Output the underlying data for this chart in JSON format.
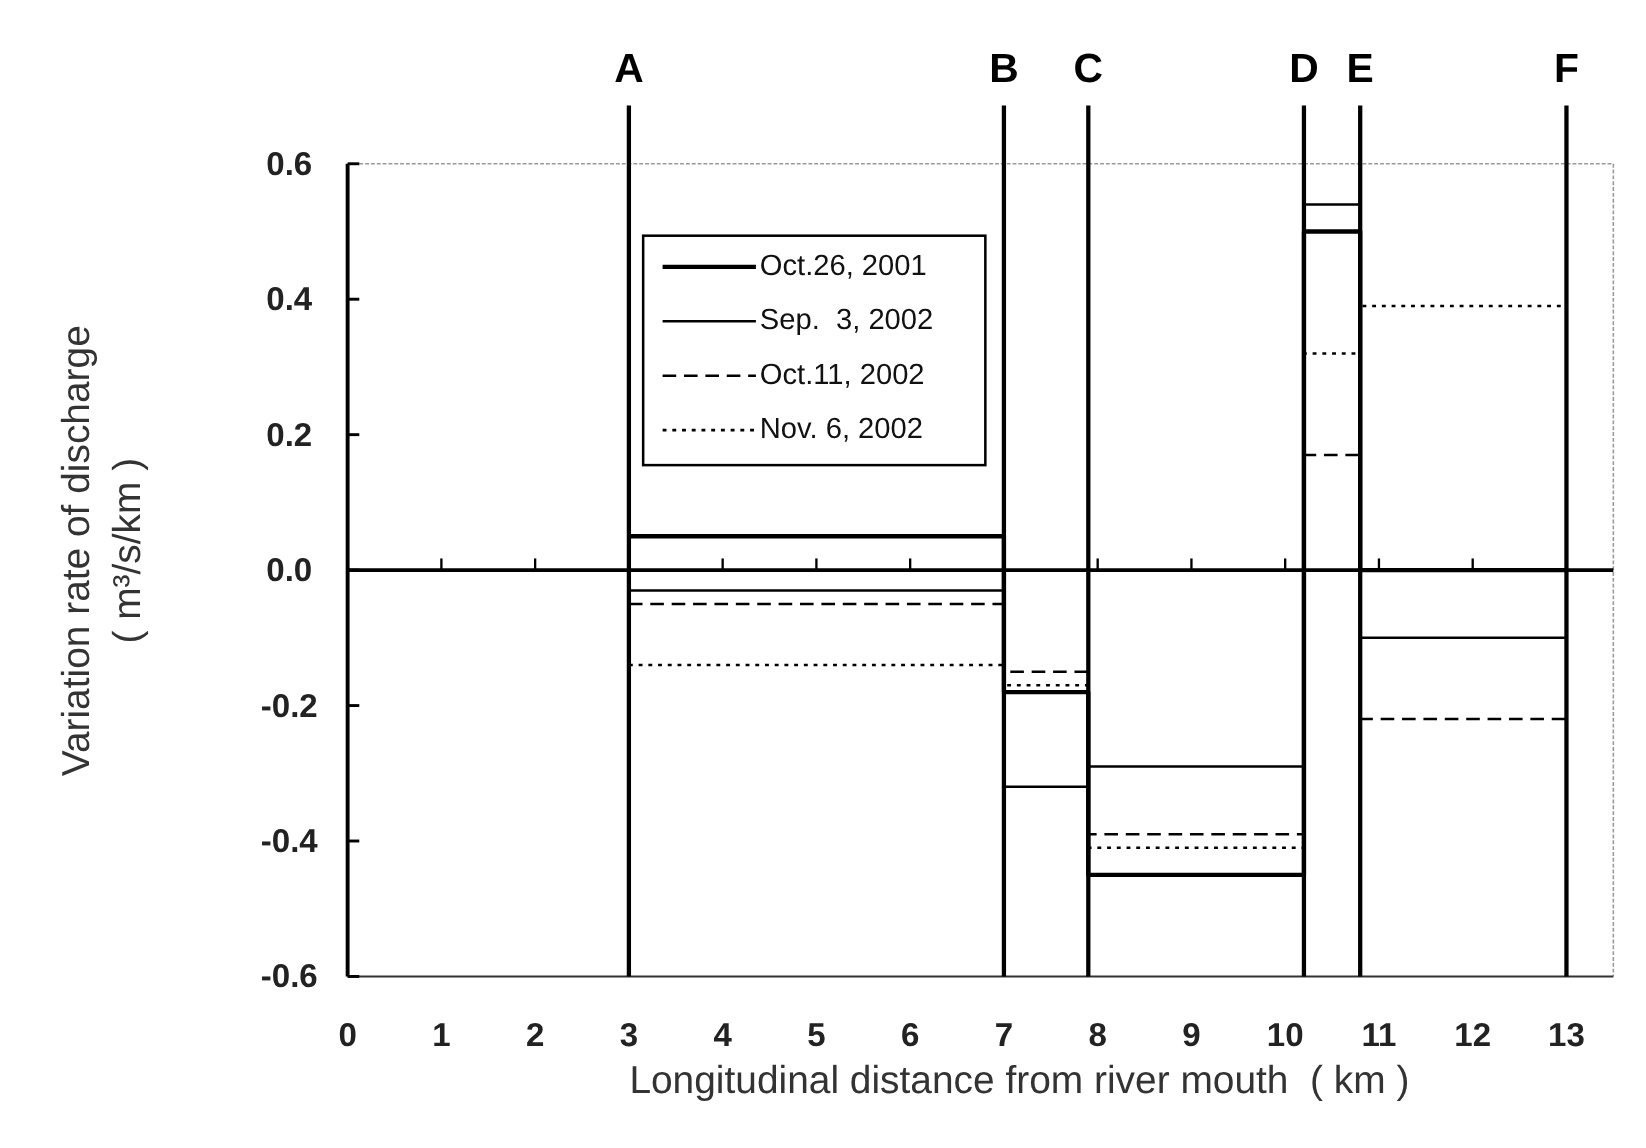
{
  "chart_data": {
    "type": "step",
    "xlabel": "Longitudinal distance from river mouth  ( km )",
    "ylabel": "Variation rate of discharge\n( m³/s/km )",
    "xlim": [
      0,
      13.5
    ],
    "xticks": [
      0,
      1,
      2,
      3,
      4,
      5,
      6,
      7,
      8,
      9,
      10,
      11,
      12,
      13
    ],
    "ylim": [
      -0.6,
      0.6
    ],
    "yticks": [
      {
        "value": 0.6,
        "label": "0.6"
      },
      {
        "value": 0.4,
        "label": "0.4"
      },
      {
        "value": 0.2,
        "label": "0.2"
      },
      {
        "value": 0,
        "label": "0.0"
      },
      {
        "value": -0.2,
        "label": "-0.2"
      },
      {
        "value": -0.4,
        "label": "-0.4"
      },
      {
        "value": -0.6,
        "label": "-0.6"
      }
    ],
    "x": [
      3,
      7,
      7.9,
      10.2,
      10.8,
      13
    ],
    "series": [
      {
        "name": "Oct.26, 2001",
        "color": "#000000",
        "line_style": "solid",
        "values": [
          0.05,
          -0.18,
          -0.45,
          0.5,
          0.0,
          0.0
        ]
      },
      {
        "name": "Sep.  3, 2002",
        "color": "#000000",
        "line_style": "solid",
        "values": [
          -0.03,
          -0.32,
          -0.29,
          0.54,
          -0.1,
          -0.1
        ]
      },
      {
        "name": "Oct.11, 2002",
        "color": "#000000",
        "line_style": "dashed",
        "values": [
          -0.05,
          -0.15,
          -0.39,
          0.17,
          -0.22,
          -0.22
        ]
      },
      {
        "name": "Nov. 6, 2002",
        "color": "#000000",
        "line_style": "dotted",
        "values": [
          -0.14,
          -0.17,
          -0.41,
          0.32,
          0.39,
          0.39
        ]
      }
    ],
    "ref_lines": [
      {
        "axis": "x",
        "value": 3,
        "label": "A"
      },
      {
        "axis": "x",
        "value": 7,
        "label": "B"
      },
      {
        "axis": "x",
        "value": 7.9,
        "label": "C"
      },
      {
        "axis": "x",
        "value": 10.2,
        "label": "D"
      },
      {
        "axis": "x",
        "value": 10.8,
        "label": "E"
      },
      {
        "axis": "x",
        "value": 13,
        "label": "F"
      }
    ],
    "legend": "top left",
    "grid": false
  }
}
